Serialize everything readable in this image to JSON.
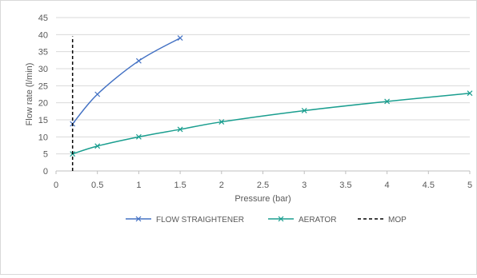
{
  "chart_data": {
    "type": "line",
    "title": "",
    "xlabel": "Pressure (bar)",
    "ylabel": "Flow rate (l/min)",
    "xlim": [
      0,
      5
    ],
    "ylim": [
      0,
      45
    ],
    "x_ticks": [
      0,
      0.5,
      1,
      1.5,
      2,
      2.5,
      3,
      3.5,
      4,
      4.5,
      5
    ],
    "y_ticks": [
      0,
      5,
      10,
      15,
      20,
      25,
      30,
      35,
      40,
      45
    ],
    "x_tick_labels": [
      "0",
      "0.5",
      "1",
      "1.5",
      "2",
      "2.5",
      "3",
      "3.5",
      "4",
      "4.5",
      "5"
    ],
    "y_tick_labels": [
      "0",
      "5",
      "10",
      "15",
      "20",
      "25",
      "30",
      "35",
      "40",
      "45"
    ],
    "grid": "horizontal",
    "legend_position": "bottom",
    "series": [
      {
        "name": "FLOW STRAIGHTENER",
        "color": "#4472c4",
        "marker": "x",
        "smooth": true,
        "points": [
          [
            0.2,
            13.8
          ],
          [
            0.5,
            22.5
          ],
          [
            1.0,
            32.3
          ],
          [
            1.5,
            39.0
          ]
        ]
      },
      {
        "name": "AERATOR",
        "color": "#1a9e8f",
        "marker": "x",
        "smooth": true,
        "points": [
          [
            0.2,
            5.0
          ],
          [
            0.5,
            7.3
          ],
          [
            1.0,
            10.0
          ],
          [
            1.5,
            12.2
          ],
          [
            2.0,
            14.4
          ],
          [
            3.0,
            17.7
          ],
          [
            4.0,
            20.4
          ],
          [
            5.0,
            22.8
          ]
        ]
      },
      {
        "name": "MOP",
        "color": "#000000",
        "marker": "none",
        "dashed": true,
        "points": [
          [
            0.2,
            0
          ],
          [
            0.2,
            39.5
          ]
        ]
      }
    ]
  }
}
